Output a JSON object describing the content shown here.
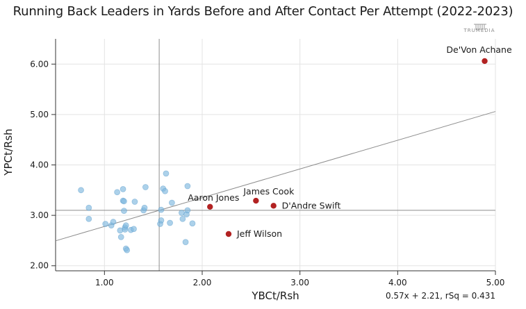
{
  "chart_data": {
    "type": "scatter",
    "title": "Running Back Leaders in Yards Before and After Contact Per Attempt (2022-2023)",
    "brand": "TRUMEDIA",
    "xlabel": "YBCt/Rsh",
    "ylabel": "YPCt/Rsh",
    "xlim": [
      0.5,
      5.0
    ],
    "ylim": [
      1.9,
      6.5
    ],
    "x_ticks": [
      "1.00",
      "2.00",
      "3.00",
      "4.00",
      "5.00"
    ],
    "y_ticks": [
      "2.00",
      "3.00",
      "4.00",
      "5.00",
      "6.00"
    ],
    "grid": true,
    "reference_lines": {
      "x_mean": 1.56,
      "y_mean": 3.1
    },
    "trendline": {
      "slope": 0.57,
      "intercept": 2.21,
      "label": "0.57x + 2.21, rSq = 0.431"
    },
    "highlight_color": "#b22222",
    "base_color": "#7fb8de",
    "highlighted": [
      {
        "name": "De'Von Achane",
        "x": 4.89,
        "y": 6.06
      },
      {
        "name": "James Cook",
        "x": 2.55,
        "y": 3.29
      },
      {
        "name": "D'Andre Swift",
        "x": 2.73,
        "y": 3.19
      },
      {
        "name": "Aaron Jones",
        "x": 2.08,
        "y": 3.17
      },
      {
        "name": "Jeff Wilson",
        "x": 2.27,
        "y": 2.63
      }
    ],
    "others": [
      {
        "x": 0.76,
        "y": 3.5
      },
      {
        "x": 0.84,
        "y": 3.15
      },
      {
        "x": 0.84,
        "y": 2.93
      },
      {
        "x": 1.01,
        "y": 2.83
      },
      {
        "x": 1.07,
        "y": 2.8
      },
      {
        "x": 1.09,
        "y": 2.87
      },
      {
        "x": 1.13,
        "y": 3.46
      },
      {
        "x": 1.16,
        "y": 2.7
      },
      {
        "x": 1.17,
        "y": 2.57
      },
      {
        "x": 1.19,
        "y": 3.52
      },
      {
        "x": 1.19,
        "y": 3.29
      },
      {
        "x": 1.2,
        "y": 3.28
      },
      {
        "x": 1.2,
        "y": 3.09
      },
      {
        "x": 1.21,
        "y": 2.76
      },
      {
        "x": 1.21,
        "y": 2.72
      },
      {
        "x": 1.22,
        "y": 2.8
      },
      {
        "x": 1.22,
        "y": 2.34
      },
      {
        "x": 1.23,
        "y": 2.31
      },
      {
        "x": 1.27,
        "y": 2.71
      },
      {
        "x": 1.3,
        "y": 2.73
      },
      {
        "x": 1.31,
        "y": 3.27
      },
      {
        "x": 1.4,
        "y": 3.1
      },
      {
        "x": 1.41,
        "y": 3.15
      },
      {
        "x": 1.42,
        "y": 3.56
      },
      {
        "x": 1.57,
        "y": 2.83
      },
      {
        "x": 1.58,
        "y": 2.9
      },
      {
        "x": 1.58,
        "y": 3.11
      },
      {
        "x": 1.6,
        "y": 3.53
      },
      {
        "x": 1.62,
        "y": 3.48
      },
      {
        "x": 1.63,
        "y": 3.83
      },
      {
        "x": 1.67,
        "y": 2.85
      },
      {
        "x": 1.69,
        "y": 3.25
      },
      {
        "x": 1.79,
        "y": 3.05
      },
      {
        "x": 1.8,
        "y": 2.93
      },
      {
        "x": 1.83,
        "y": 2.47
      },
      {
        "x": 1.84,
        "y": 3.02
      },
      {
        "x": 1.85,
        "y": 3.58
      },
      {
        "x": 1.85,
        "y": 3.1
      },
      {
        "x": 1.9,
        "y": 2.84
      }
    ]
  }
}
